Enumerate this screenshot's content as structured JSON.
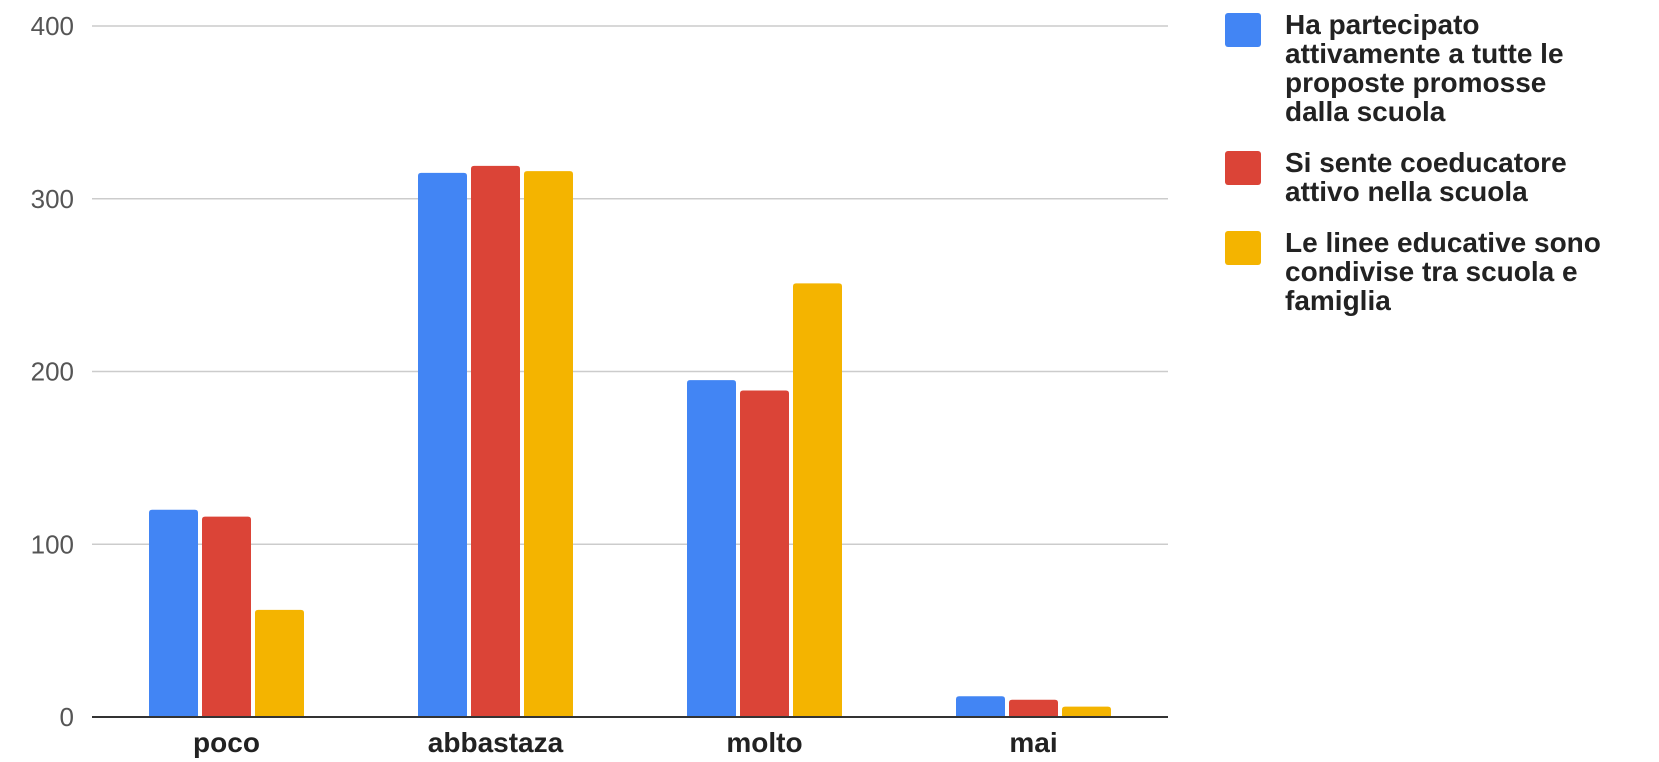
{
  "chart_data": {
    "type": "bar",
    "categories": [
      "poco",
      "abbastaza",
      "molto",
      "mai"
    ],
    "series": [
      {
        "name": "Ha partecipato attivamente a tutte le proposte promosse dalla scuola",
        "color": "#4285f4",
        "values": [
          120,
          315,
          195,
          12
        ]
      },
      {
        "name": "Si sente coeducatore attivo nella scuola",
        "color": "#db4437",
        "values": [
          116,
          319,
          189,
          10
        ]
      },
      {
        "name": "Le linee educative sono condivise tra scuola e famiglia",
        "color": "#f4b400",
        "values": [
          62,
          316,
          251,
          6
        ]
      }
    ],
    "ylim": [
      0,
      400
    ],
    "yticks": [
      0,
      100,
      200,
      300,
      400
    ],
    "grid": true,
    "legend_position": "right"
  }
}
